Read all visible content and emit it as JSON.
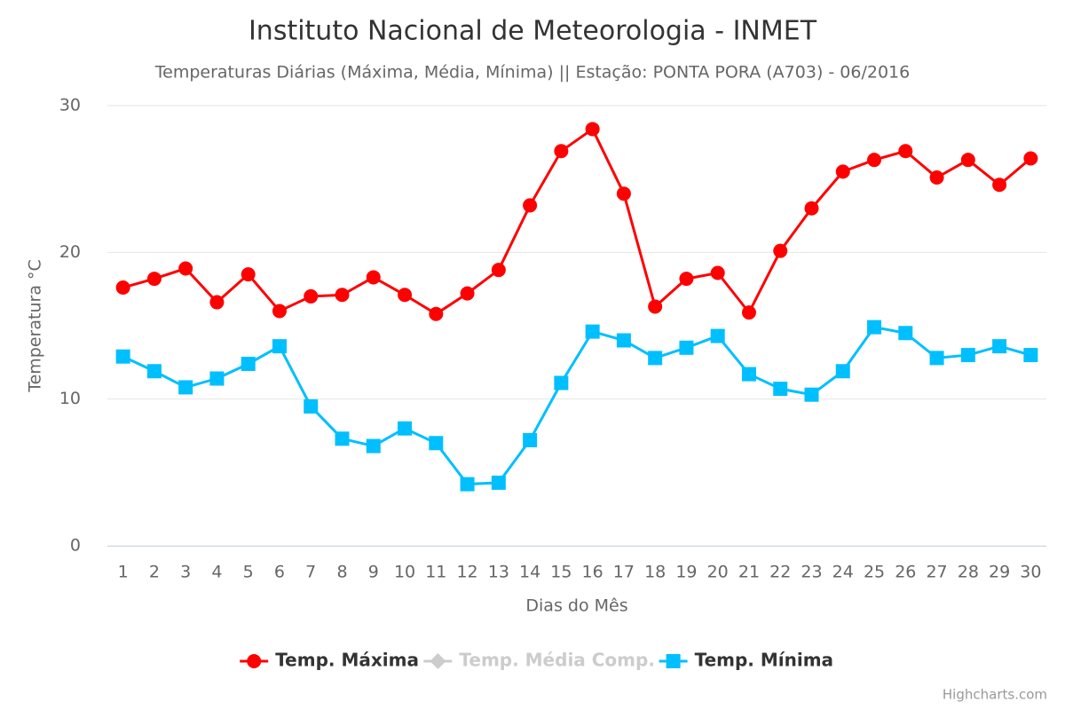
{
  "chart_data": {
    "type": "line",
    "title": "Instituto Nacional de Meteorologia - INMET",
    "subtitle": "Temperaturas Diárias (Máxima, Média, Mínima) || Estação: PONTA PORA (A703) - 06/2016",
    "x_label": "Dias do Mês",
    "y_label": "Temperatura °C",
    "credits": "Highcharts.com",
    "categories": [
      "1",
      "2",
      "3",
      "4",
      "5",
      "6",
      "7",
      "8",
      "9",
      "10",
      "11",
      "12",
      "13",
      "14",
      "15",
      "16",
      "17",
      "18",
      "19",
      "20",
      "21",
      "22",
      "23",
      "24",
      "25",
      "26",
      "27",
      "28",
      "29",
      "30"
    ],
    "ylim": [
      0,
      30
    ],
    "yticks": [
      0,
      10,
      20,
      30
    ],
    "grid": true,
    "legend": "bottom",
    "series": [
      {
        "name": "Temp. Máxima",
        "color": "#ff0000",
        "marker": "circle",
        "values": [
          17.6,
          18.2,
          18.9,
          16.6,
          18.5,
          16.0,
          17.0,
          17.1,
          18.3,
          17.1,
          15.8,
          17.2,
          18.8,
          23.2,
          26.9,
          28.4,
          24.0,
          16.3,
          18.2,
          18.6,
          15.9,
          20.1,
          23.0,
          25.5,
          26.3,
          26.9,
          25.1,
          26.3,
          24.6,
          26.4
        ]
      },
      {
        "name": "Temp. Média Comp.",
        "color": "#cccccc",
        "marker": "diamond",
        "visible": false
      },
      {
        "name": "Temp. Mínima",
        "color": "#00bfff",
        "marker": "square",
        "values": [
          12.9,
          11.9,
          10.8,
          11.4,
          12.4,
          13.6,
          9.5,
          7.3,
          6.8,
          8.0,
          7.0,
          4.2,
          4.3,
          7.2,
          11.1,
          14.6,
          14.0,
          12.8,
          13.5,
          14.3,
          11.7,
          10.7,
          10.3,
          11.9,
          14.9,
          14.5,
          12.8,
          13.0,
          13.6,
          13.0
        ]
      }
    ]
  }
}
